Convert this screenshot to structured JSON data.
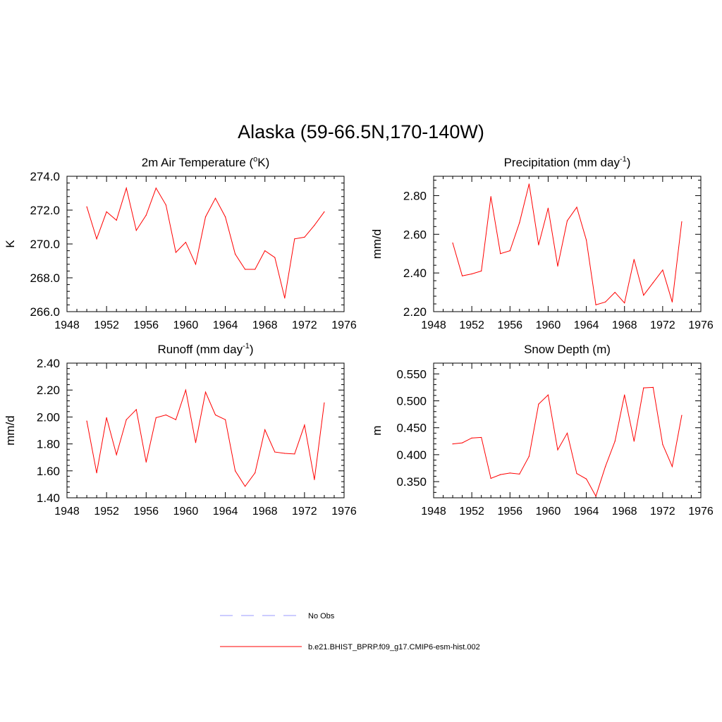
{
  "page_title": "Alaska (59-66.5N,170-140W)",
  "colors": {
    "model": "#ff0000",
    "obs": "#9999ff",
    "axis": "#000000"
  },
  "legend": [
    {
      "label": "No Obs",
      "style": "dashed",
      "color": "#9999ff"
    },
    {
      "label": "b.e21.BHIST_BPRP.f09_g17.CMIP6-esm-hist.002",
      "style": "solid",
      "color": "#ff0000"
    }
  ],
  "chart_data": [
    {
      "id": "temp",
      "type": "line",
      "title": "2m Air Temperature (",
      "title_sup": "o",
      "title_suffix": "K)",
      "ylabel": "K",
      "xlim": [
        1948,
        1976
      ],
      "ylim": [
        266,
        274
      ],
      "xticks": [
        1948,
        1952,
        1956,
        1960,
        1964,
        1968,
        1972,
        1976
      ],
      "yticks": [
        266.0,
        268.0,
        270.0,
        272.0,
        274.0
      ],
      "ytick_labels": [
        "266.0",
        "268.0",
        "270.0",
        "272.0",
        "274.0"
      ],
      "x": [
        1950,
        1951,
        1952,
        1953,
        1954,
        1955,
        1956,
        1957,
        1958,
        1959,
        1960,
        1961,
        1962,
        1963,
        1964,
        1965,
        1966,
        1967,
        1968,
        1969,
        1970,
        1971,
        1972,
        1973,
        1974
      ],
      "values": [
        272.2,
        270.3,
        271.9,
        271.4,
        273.3,
        270.8,
        271.7,
        273.3,
        272.3,
        269.5,
        270.1,
        268.8,
        271.6,
        272.7,
        271.6,
        269.4,
        268.5,
        268.5,
        269.6,
        269.2,
        266.8,
        270.3,
        270.4,
        271.1,
        271.9
      ]
    },
    {
      "id": "precip",
      "type": "line",
      "title": "Precipitation (mm day",
      "title_sup": "-1",
      "title_suffix": ")",
      "ylabel": "mm/d",
      "xlim": [
        1948,
        1976
      ],
      "ylim": [
        2.2,
        2.9
      ],
      "xticks": [
        1948,
        1952,
        1956,
        1960,
        1964,
        1968,
        1972,
        1976
      ],
      "yticks": [
        2.2,
        2.4,
        2.6,
        2.8
      ],
      "ytick_labels": [
        "2.20",
        "2.40",
        "2.60",
        "2.80"
      ],
      "x": [
        1950,
        1951,
        1952,
        1953,
        1954,
        1955,
        1956,
        1957,
        1958,
        1959,
        1960,
        1961,
        1962,
        1963,
        1964,
        1965,
        1966,
        1967,
        1968,
        1969,
        1970,
        1971,
        1972,
        1973,
        1974
      ],
      "values": [
        2.555,
        2.385,
        2.395,
        2.41,
        2.795,
        2.5,
        2.515,
        2.66,
        2.86,
        2.545,
        2.735,
        2.435,
        2.67,
        2.74,
        2.57,
        2.235,
        2.25,
        2.3,
        2.245,
        2.47,
        2.285,
        2.35,
        2.415,
        2.25,
        2.665
      ]
    },
    {
      "id": "runoff",
      "type": "line",
      "title": "Runoff (mm day",
      "title_sup": "-1",
      "title_suffix": ")",
      "ylabel": "mm/d",
      "xlim": [
        1948,
        1976
      ],
      "ylim": [
        1.4,
        2.4
      ],
      "xticks": [
        1948,
        1952,
        1956,
        1960,
        1964,
        1968,
        1972,
        1976
      ],
      "yticks": [
        1.4,
        1.6,
        1.8,
        2.0,
        2.2,
        2.4
      ],
      "ytick_labels": [
        "1.40",
        "1.60",
        "1.80",
        "2.00",
        "2.20",
        "2.40"
      ],
      "x": [
        1950,
        1951,
        1952,
        1953,
        1954,
        1955,
        1956,
        1957,
        1958,
        1959,
        1960,
        1961,
        1962,
        1963,
        1964,
        1965,
        1966,
        1967,
        1968,
        1969,
        1970,
        1971,
        1972,
        1973,
        1974
      ],
      "values": [
        1.97,
        1.585,
        1.995,
        1.72,
        1.98,
        2.055,
        1.665,
        1.995,
        2.015,
        1.98,
        2.2,
        1.81,
        2.185,
        2.015,
        1.98,
        1.6,
        1.485,
        1.585,
        1.905,
        1.74,
        1.73,
        1.725,
        1.94,
        1.535,
        2.105
      ]
    },
    {
      "id": "snow",
      "type": "line",
      "title": "Snow Depth (m)",
      "title_sup": "",
      "title_suffix": "",
      "ylabel": "m",
      "xlim": [
        1948,
        1976
      ],
      "ylim": [
        0.32,
        0.57
      ],
      "xticks": [
        1948,
        1952,
        1956,
        1960,
        1964,
        1968,
        1972,
        1976
      ],
      "yticks": [
        0.35,
        0.4,
        0.45,
        0.5,
        0.55
      ],
      "ytick_labels": [
        "0.350",
        "0.400",
        "0.450",
        "0.500",
        "0.550"
      ],
      "x": [
        1950,
        1951,
        1952,
        1953,
        1954,
        1955,
        1956,
        1957,
        1958,
        1959,
        1960,
        1961,
        1962,
        1963,
        1964,
        1965,
        1966,
        1967,
        1968,
        1969,
        1970,
        1971,
        1972,
        1973,
        1974
      ],
      "values": [
        0.42,
        0.422,
        0.431,
        0.432,
        0.356,
        0.363,
        0.366,
        0.364,
        0.397,
        0.494,
        0.511,
        0.409,
        0.44,
        0.365,
        0.355,
        0.323,
        0.378,
        0.425,
        0.511,
        0.425,
        0.524,
        0.525,
        0.419,
        0.378,
        0.473
      ]
    }
  ]
}
